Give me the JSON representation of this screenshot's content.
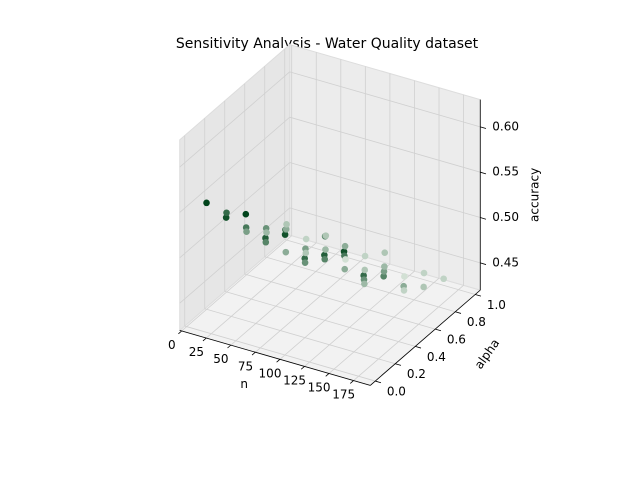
{
  "chart_data": {
    "type": "scatter3d",
    "title": "Sensitivity Analysis - Water Quality dataset",
    "x_label": "n",
    "y_label": "alpha",
    "z_label": "accuracy",
    "x": [
      10,
      30,
      50,
      70,
      90,
      110,
      130,
      150,
      170,
      10,
      30,
      50,
      70,
      90,
      110,
      130,
      150,
      170,
      10,
      30,
      50,
      70,
      90,
      110,
      130,
      150,
      170,
      10,
      30,
      50,
      70,
      90,
      110,
      130,
      150,
      170,
      10,
      30,
      50,
      70,
      90,
      110,
      130,
      150,
      170
    ],
    "y": [
      0.1,
      0.1,
      0.1,
      0.1,
      0.1,
      0.1,
      0.1,
      0.1,
      0.1,
      0.3,
      0.3,
      0.3,
      0.3,
      0.3,
      0.3,
      0.3,
      0.3,
      0.3,
      0.5,
      0.5,
      0.5,
      0.5,
      0.5,
      0.5,
      0.5,
      0.5,
      0.5,
      0.7,
      0.7,
      0.7,
      0.7,
      0.7,
      0.7,
      0.7,
      0.7,
      0.7,
      0.9,
      0.9,
      0.9,
      0.9,
      0.9,
      0.9,
      0.9,
      0.9,
      0.9
    ],
    "z": [
      0.55,
      0.54,
      0.55,
      0.53,
      0.54,
      0.52,
      0.53,
      0.54,
      0.52,
      0.52,
      0.51,
      0.5,
      0.52,
      0.49,
      0.5,
      0.51,
      0.49,
      0.5,
      0.48,
      0.49,
      0.47,
      0.48,
      0.5,
      0.47,
      0.46,
      0.48,
      0.47,
      0.46,
      0.47,
      0.45,
      0.46,
      0.47,
      0.45,
      0.46,
      0.44,
      0.45,
      0.45,
      0.44,
      0.45,
      0.43,
      0.44,
      0.45,
      0.43,
      0.44,
      0.44
    ],
    "colormap": [
      "#f7fcf5",
      "#00441b"
    ],
    "xlim": [
      -2,
      192
    ],
    "ylim": [
      -0.05,
      1.05
    ],
    "zlim": [
      0.42,
      0.63
    ],
    "xticks": [
      0,
      25,
      50,
      75,
      100,
      125,
      150,
      175
    ],
    "yticks": [
      {
        "value": 0,
        "label": "0.0"
      },
      0.2,
      0.4,
      0.6,
      0.8,
      {
        "value": 1,
        "label": "1.0"
      }
    ],
    "zticks": [
      0.45,
      {
        "value": 0.5,
        "label": "0.50"
      },
      0.55,
      {
        "value": 0.6,
        "label": "0.60"
      }
    ],
    "grid": true
  }
}
